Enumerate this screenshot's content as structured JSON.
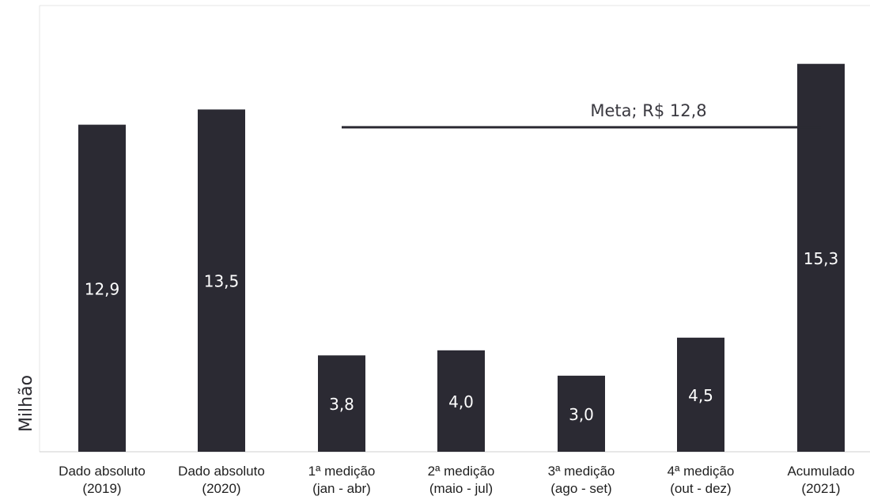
{
  "chart_data": {
    "type": "bar",
    "ylabel": "Milhão",
    "categories": [
      [
        "Dado absoluto",
        "(2019)"
      ],
      [
        "Dado absoluto",
        "(2020)"
      ],
      [
        "1ª medição",
        "(jan - abr)"
      ],
      [
        "2ª medição",
        "(maio - jul)"
      ],
      [
        "3ª medição",
        "(ago - set)"
      ],
      [
        "4ª medição",
        "(out - dez)"
      ],
      [
        "Acumulado",
        "(2021)"
      ]
    ],
    "values": [
      12.9,
      13.5,
      3.8,
      4.0,
      3.0,
      4.5,
      15.3
    ],
    "value_labels": [
      "12,9",
      "13,5",
      "3,8",
      "4,0",
      "3,0",
      "4,5",
      "15,3"
    ],
    "ylim": [
      0,
      17.6
    ],
    "reference_line": {
      "label": "Meta; R$ 12,8",
      "value": 12.8,
      "from_category": 2,
      "to_category": 6
    },
    "colors": {
      "bar": "#2b2a33",
      "text": "#ffffff",
      "line": "#2b2a33"
    },
    "grid": false
  }
}
